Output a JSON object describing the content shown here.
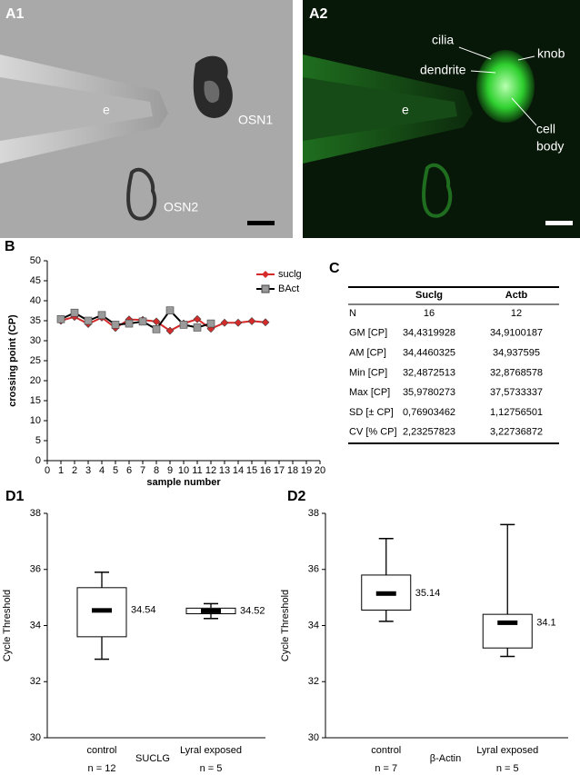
{
  "images": {
    "A1": {
      "panel": "A1",
      "labels": [
        "e",
        "OSN1",
        "OSN2"
      ]
    },
    "A2": {
      "panel": "A2",
      "labels": [
        "e",
        "cilia",
        "knob",
        "dendrite",
        "cell",
        "body"
      ]
    }
  },
  "chart_data": [
    {
      "type": "line",
      "panel": "B",
      "xlabel": "sample number",
      "ylabel": "crossing point (CP)",
      "x": [
        1,
        2,
        3,
        4,
        5,
        6,
        7,
        8,
        9,
        10,
        11,
        12,
        13,
        14,
        15,
        16
      ],
      "series": [
        {
          "name": "suclg",
          "color": "#d42a2a",
          "marker": "diamond",
          "marker_fill": "#d42a2a",
          "values": [
            35.0,
            35.98,
            34.2,
            35.8,
            33.2,
            35.3,
            35.2,
            34.8,
            32.49,
            34.3,
            35.4,
            33.0,
            34.5,
            34.5,
            34.9,
            34.6
          ]
        },
        {
          "name": "BAct",
          "color": "#000000",
          "marker": "square",
          "marker_fill": "#9a9a9a",
          "values": [
            35.4,
            37.0,
            35.0,
            36.4,
            34.0,
            34.3,
            34.8,
            32.88,
            37.57,
            34.0,
            33.3,
            34.3,
            null,
            null,
            null,
            null
          ]
        }
      ],
      "xlim": [
        0,
        20
      ],
      "xticks": [
        0,
        1,
        2,
        3,
        4,
        5,
        6,
        7,
        8,
        9,
        10,
        11,
        12,
        13,
        14,
        15,
        16,
        17,
        18,
        19,
        20
      ],
      "ylim": [
        0,
        50
      ],
      "yticks": [
        0,
        5,
        10,
        15,
        20,
        25,
        30,
        35,
        40,
        45,
        50
      ],
      "legend": "top-right",
      "grid": false
    },
    {
      "type": "box",
      "panel": "D1",
      "ylabel": "Cycle Threshold",
      "label": "SUCLG",
      "categories": [
        "control",
        "Lyral exposed"
      ],
      "n_labels": [
        "n = 12",
        "n = 5"
      ],
      "boxes": [
        {
          "min": 32.8,
          "q1": 33.6,
          "median": 34.54,
          "q3": 35.35,
          "max": 35.9
        },
        {
          "min": 34.25,
          "q1": 34.42,
          "median": 34.52,
          "q3": 34.62,
          "max": 34.78
        }
      ],
      "ylim": [
        30,
        38
      ],
      "yticks": [
        30,
        32,
        34,
        36,
        38
      ]
    },
    {
      "type": "box",
      "panel": "D2",
      "ylabel": "Cycle Threshold",
      "label": "β-Actin",
      "categories": [
        "control",
        "Lyral exposed"
      ],
      "n_labels": [
        "n = 7",
        "n = 5"
      ],
      "boxes": [
        {
          "min": 34.15,
          "q1": 34.55,
          "median": 35.14,
          "q3": 35.8,
          "max": 37.1
        },
        {
          "min": 32.9,
          "q1": 33.2,
          "median": 34.1,
          "q3": 34.4,
          "max": 37.6
        }
      ],
      "ylim": [
        30,
        38
      ],
      "yticks": [
        30,
        32,
        34,
        36,
        38
      ]
    }
  ],
  "table": {
    "panel": "C",
    "header": [
      "Suclg",
      "Actb"
    ],
    "rows": [
      [
        "N",
        "16",
        "12"
      ],
      [
        "GM [CP]",
        "34,4319928",
        "34,9100187"
      ],
      [
        "AM [CP]",
        "34,4460325",
        "34,937595"
      ],
      [
        "Min [CP]",
        "32,4872513",
        "32,8768578"
      ],
      [
        "Max [CP]",
        "35,9780273",
        "37,5733337"
      ],
      [
        "SD [± CP]",
        "0,76903462",
        "1,12756501"
      ],
      [
        "CV [% CP]",
        "2,23257823",
        "3,22736872"
      ]
    ]
  }
}
